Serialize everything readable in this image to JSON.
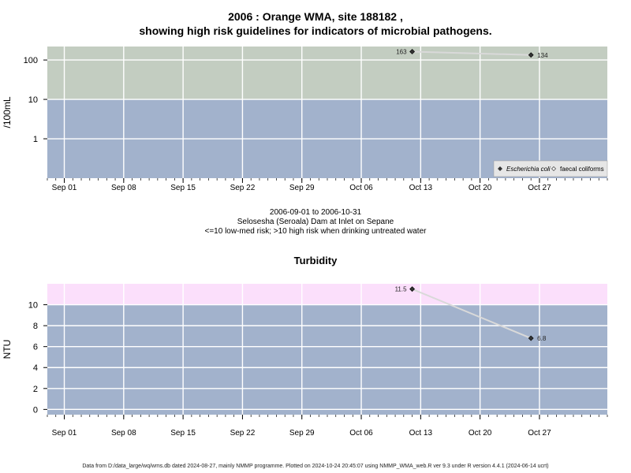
{
  "title_line1": "2006 : Orange WMA, site 188182 ,",
  "title_line2": "showing high risk guidelines for indicators of microbial pathogens.",
  "info": {
    "date_range": "2006-09-01 to 2006-10-31",
    "location": "Selosesha (Seroala) Dam at Inlet on Sepane",
    "risk_note": "<=10 low-med risk; >10 high risk when drinking untreated water"
  },
  "turbidity_title": "Turbidity",
  "footer": "Data from D:/data_large/wq/wms.db dated 2024-08-27, mainly NMMP programme. Plotted on 2024-10-24 20:45:07 using NMMP_WMA_web.R ver 9.3 under R version 4.4.1 (2024-06-14 ucrt)",
  "colors": {
    "low_risk_band": "#a2b2cc",
    "high_risk_band_micro": "#c3cdc1",
    "high_risk_band_turb": "#fbdffb",
    "grid": "#ffffff",
    "line": "#d9d9d9",
    "point": "#333333"
  },
  "chart_data": [
    {
      "type": "line",
      "ylabel": "/100mL",
      "y_scale": "log",
      "y_ticks": [
        1,
        10,
        100
      ],
      "y_tick_labels": [
        "1",
        "10",
        "100"
      ],
      "ylim": [
        0.1,
        220
      ],
      "guideline": 10,
      "x_tick_labels": [
        "Sep 01",
        "Sep 08",
        "Sep 15",
        "Sep 22",
        "Sep 29",
        "Oct 06",
        "Oct 13",
        "Oct 20",
        "Oct 27"
      ],
      "x_ticks": [
        "2006-09-01",
        "2006-09-08",
        "2006-09-15",
        "2006-09-22",
        "2006-09-29",
        "2006-10-06",
        "2006-10-13",
        "2006-10-20",
        "2006-10-27"
      ],
      "xlim": [
        "2006-08-30",
        "2006-11-04"
      ],
      "legend_position": "bottom-right",
      "series": [
        {
          "name": "Escherichia coli",
          "marker": "filled-diamond",
          "x": [
            "2006-10-12",
            "2006-10-26"
          ],
          "y": [
            163,
            134
          ],
          "labels": [
            "163",
            "134"
          ]
        },
        {
          "name": "faecal coliforms",
          "marker": "open-diamond",
          "x": [],
          "y": [],
          "labels": []
        }
      ]
    },
    {
      "type": "line",
      "ylabel": "NTU",
      "y_ticks": [
        0,
        2,
        4,
        6,
        8,
        10
      ],
      "y_tick_labels": [
        "0",
        "2",
        "4",
        "6",
        "8",
        "10"
      ],
      "ylim": [
        -0.5,
        12
      ],
      "guideline": 10,
      "x_tick_labels": [
        "Sep 01",
        "Sep 08",
        "Sep 15",
        "Sep 22",
        "Sep 29",
        "Oct 06",
        "Oct 13",
        "Oct 20",
        "Oct 27"
      ],
      "x_ticks": [
        "2006-09-01",
        "2006-09-08",
        "2006-09-15",
        "2006-09-22",
        "2006-09-29",
        "2006-10-06",
        "2006-10-13",
        "2006-10-20",
        "2006-10-27"
      ],
      "xlim": [
        "2006-08-30",
        "2006-11-04"
      ],
      "series": [
        {
          "x": [
            "2006-10-12",
            "2006-10-26"
          ],
          "y": [
            11.5,
            6.8
          ],
          "labels": [
            "11.5",
            "6.8"
          ]
        }
      ]
    }
  ]
}
